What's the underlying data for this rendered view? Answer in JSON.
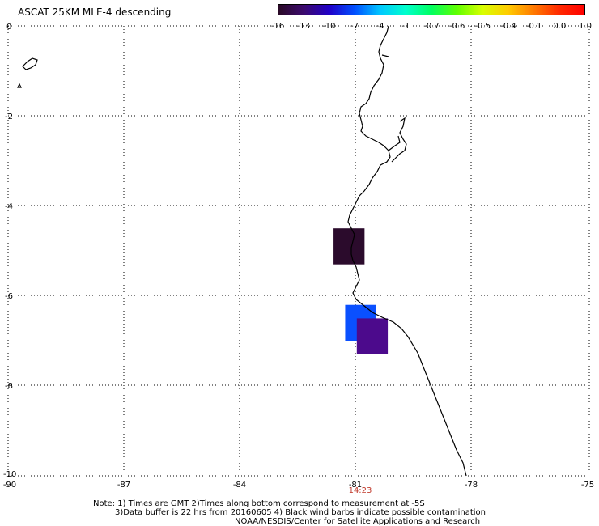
{
  "title": "ASCAT 25KM MLE-4 descending",
  "colorbar": {
    "labels": [
      "-16",
      "-13",
      "-10",
      "-7",
      "-4",
      "-1",
      "-0.7",
      "-0.6",
      "-0.5",
      "-0.4",
      "-0.1",
      "0.0",
      "1.0"
    ],
    "gradient": [
      "#2a0a26",
      "#3c0a6e",
      "#2000c8",
      "#0050ff",
      "#00c8ff",
      "#00ffcc",
      "#00ff60",
      "#60ff00",
      "#d8ff00",
      "#ffcc00",
      "#ff7a00",
      "#ff2a00",
      "#ff0000"
    ]
  },
  "axes": {
    "lon_labels": [
      "-90",
      "-87",
      "-84",
      "-81",
      "-78",
      "-75"
    ],
    "lat_labels": [
      "0",
      "-2",
      "-4",
      "-6",
      "-8",
      "-10"
    ]
  },
  "time_label": "14:23",
  "notes": [
    "Note: 1) Times are GMT 2)Times along bottom correspond to measurement at -5S",
    "3)Data buffer is 22 hrs from 20160605 4) Black wind barbs indicate possible contamination",
    "NOAA/NESDIS/Center for Satellite Applications and Research"
  ],
  "cells": [
    {
      "lon": [
        -81.6,
        -80.8
      ],
      "lat": [
        -4.5,
        -5.3
      ],
      "color": "#2b0b2c"
    },
    {
      "lon": [
        -81.3,
        -80.5
      ],
      "lat": [
        -6.2,
        -7.0
      ],
      "color": "#0a50ff"
    },
    {
      "lon": [
        -81.0,
        -80.2
      ],
      "lat": [
        -6.5,
        -7.3
      ],
      "color": "#4c0a8c"
    }
  ]
}
